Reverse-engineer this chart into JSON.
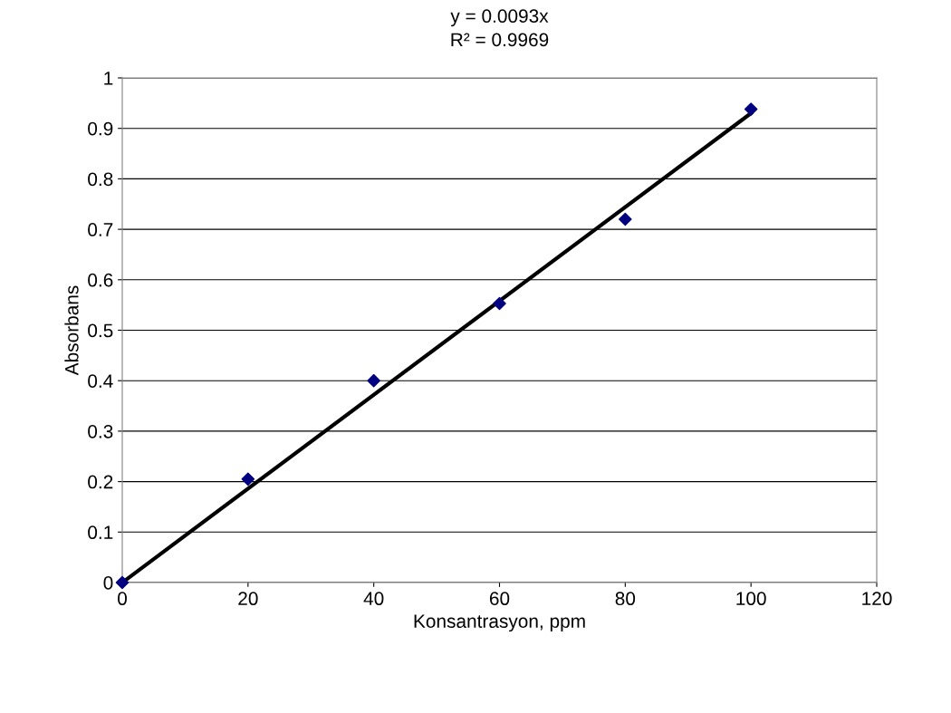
{
  "chart_data": {
    "type": "scatter",
    "xlabel": "Konsantrasyon, ppm",
    "ylabel": "Absorbans",
    "annotations": [
      "y = 0.0093x",
      "R² = 0.9969"
    ],
    "series": [
      {
        "color": "#000080",
        "marker": "diamond",
        "x": [
          0,
          20,
          40,
          60,
          80,
          100
        ],
        "values": [
          0,
          0.205,
          0.4,
          0.553,
          0.72,
          0.938
        ]
      },
      {
        "type": "line",
        "color": "#000000",
        "marker": "none",
        "x": [
          0,
          100
        ],
        "values": [
          0,
          0.93
        ]
      }
    ],
    "xlim": [
      0,
      120
    ],
    "xticks": [
      0,
      20,
      40,
      60,
      80,
      100,
      120
    ],
    "ylim": [
      0,
      1
    ],
    "yticks": [
      0,
      0.1,
      0.2,
      0.3,
      0.4,
      0.5,
      0.6,
      0.7,
      0.8,
      0.9,
      1
    ],
    "grid": "y",
    "legend": false
  }
}
